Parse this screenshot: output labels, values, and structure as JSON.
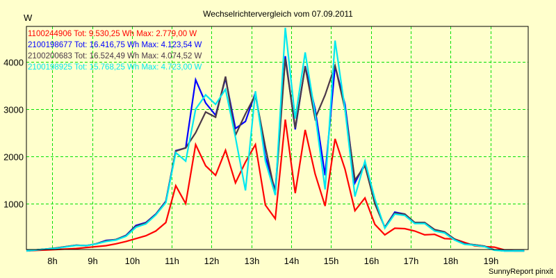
{
  "chart_data": {
    "type": "line",
    "title": "Wechselrichtervergleich vom 07.09.2011",
    "ylabel": "W",
    "xlabel": "",
    "credit": "SunnyReport pinxit",
    "xlim": [
      7.35,
      19.95
    ],
    "ylim": [
      0,
      4750
    ],
    "grid": true,
    "legend_placement": "top-left",
    "x_ticks": [
      8,
      9,
      10,
      11,
      12,
      13,
      14,
      15,
      16,
      17,
      18,
      19
    ],
    "x_tick_labels": [
      "8h",
      "9h",
      "10h",
      "11h",
      "12h",
      "13h",
      "14h",
      "15h",
      "16h",
      "17h",
      "18h",
      "19h"
    ],
    "y_ticks": [
      1000,
      2000,
      3000,
      4000
    ],
    "y_tick_labels": [
      "1000",
      "2000",
      "3000",
      "4000"
    ],
    "x": [
      7.35,
      7.6,
      7.85,
      8.1,
      8.35,
      8.6,
      8.85,
      9.1,
      9.35,
      9.6,
      9.85,
      10.1,
      10.35,
      10.6,
      10.85,
      11.1,
      11.35,
      11.6,
      11.85,
      12.1,
      12.35,
      12.6,
      12.85,
      13.1,
      13.35,
      13.6,
      13.85,
      14.1,
      14.35,
      14.6,
      14.85,
      15.1,
      15.35,
      15.6,
      15.85,
      16.1,
      16.35,
      16.6,
      16.85,
      17.1,
      17.35,
      17.6,
      17.85,
      18.1,
      18.35,
      18.6,
      18.85,
      19.1,
      19.35,
      19.6,
      19.85
    ],
    "series": [
      {
        "name": "1100244906",
        "legend": "1100244906 Tot: 9.530,25 Wh Max: 2.779,00 W",
        "color": "#ff0000",
        "values": [
          0,
          10,
          20,
          30,
          40,
          50,
          70,
          90,
          110,
          150,
          200,
          260,
          320,
          420,
          600,
          1380,
          1000,
          2250,
          1800,
          1600,
          2130,
          1440,
          1880,
          2250,
          970,
          680,
          2780,
          1220,
          2560,
          1630,
          950,
          2370,
          1730,
          850,
          1120,
          560,
          340,
          480,
          470,
          420,
          340,
          350,
          260,
          250,
          180,
          110,
          90,
          80,
          20,
          0,
          0
        ]
      },
      {
        "name": "2100198677",
        "legend": "2100198677 Tot: 16.416,75 Wh Max: 4.123,54 W",
        "color": "#0000ff",
        "values": [
          0,
          20,
          40,
          60,
          90,
          120,
          110,
          150,
          220,
          240,
          330,
          540,
          600,
          780,
          1050,
          2120,
          2180,
          3620,
          3130,
          2870,
          3650,
          2590,
          2740,
          3350,
          2000,
          1280,
          4120,
          2570,
          3910,
          3000,
          1600,
          3910,
          3100,
          1440,
          1850,
          1000,
          500,
          820,
          780,
          600,
          600,
          450,
          400,
          250,
          150,
          130,
          100,
          20,
          0,
          0,
          0
        ]
      },
      {
        "name": "2100200683",
        "legend": "2100200683 Tot: 16.524,49 Wh Max: 4.074,52 W",
        "color": "#4a3848",
        "values": [
          0,
          20,
          40,
          60,
          90,
          120,
          110,
          150,
          210,
          240,
          320,
          520,
          590,
          770,
          1040,
          2110,
          2180,
          2500,
          2940,
          2830,
          3690,
          2450,
          2900,
          3300,
          2200,
          1200,
          4070,
          2600,
          3900,
          2800,
          3300,
          3920,
          3000,
          1500,
          1800,
          1000,
          500,
          800,
          780,
          600,
          600,
          450,
          400,
          250,
          150,
          130,
          100,
          20,
          0,
          0,
          0
        ]
      },
      {
        "name": "2100198925",
        "legend": "2100198925 Tot: 15.768,25 Wh Max: 4.723,00 W",
        "color": "#00e8f0",
        "values": [
          0,
          20,
          40,
          55,
          85,
          115,
          110,
          145,
          200,
          230,
          310,
          500,
          570,
          760,
          1020,
          2080,
          1900,
          3000,
          3300,
          3100,
          3420,
          2400,
          1280,
          3380,
          1900,
          1180,
          4720,
          2800,
          4200,
          2900,
          1300,
          4450,
          3000,
          1150,
          1900,
          1100,
          480,
          780,
          750,
          580,
          580,
          420,
          380,
          230,
          140,
          120,
          90,
          15,
          0,
          0,
          0
        ]
      }
    ]
  }
}
